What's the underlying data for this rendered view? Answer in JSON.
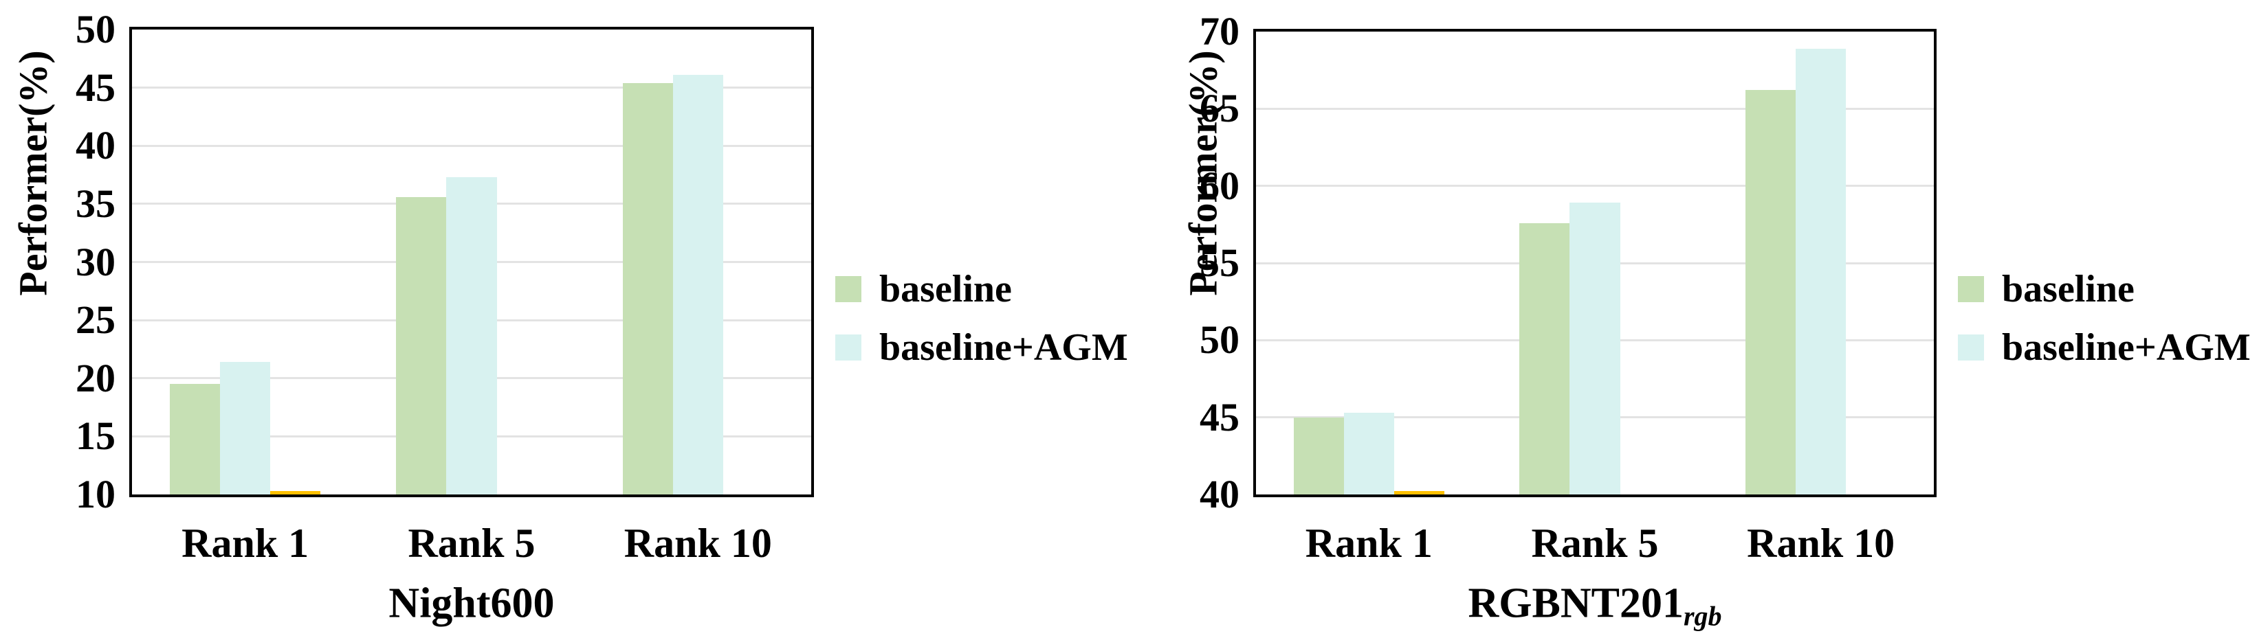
{
  "figure": {
    "background": "#ffffff",
    "axis_color": "#000000",
    "gridline_color": "#e3e3e3",
    "text_color": "#000000"
  },
  "chart_data": [
    {
      "type": "bar",
      "title_main": "Night600",
      "title_sub": "",
      "ylabel": "Performer(%)",
      "categories": [
        "Rank 1",
        "Rank 5",
        "Rank 10"
      ],
      "series": [
        {
          "name": "baseline",
          "color": "#c6e0b4",
          "values": [
            19.5,
            35.6,
            45.4
          ]
        },
        {
          "name": "baseline+AGM",
          "color": "#d8f2f0",
          "values": [
            21.4,
            37.3,
            46.1
          ]
        }
      ],
      "ylim": [
        10,
        50
      ],
      "ytick_step": 5,
      "yticks": [
        "10",
        "15",
        "20",
        "25",
        "30",
        "35",
        "40",
        "45",
        "50"
      ],
      "grid": true,
      "legend_position": "right",
      "extra_marks": [
        {
          "type": "baseline-sliver",
          "category": "Rank 1",
          "slot": 2,
          "color": "#ffc000",
          "note": "thin gold bar sliver at axis baseline in empty third series slot"
        }
      ]
    },
    {
      "type": "bar",
      "title_main": "RGBNT201",
      "title_sub": "rgb",
      "ylabel": "Performer(%)",
      "categories": [
        "Rank 1",
        "Rank 5",
        "Rank 10"
      ],
      "series": [
        {
          "name": "baseline",
          "color": "#c6e0b4",
          "values": [
            45.0,
            57.6,
            66.2
          ]
        },
        {
          "name": "baseline+AGM",
          "color": "#d8f2f0",
          "values": [
            45.3,
            58.9,
            68.9
          ]
        }
      ],
      "ylim": [
        40,
        70
      ],
      "ytick_step": 5,
      "yticks": [
        "40",
        "45",
        "50",
        "55",
        "60",
        "65",
        "70"
      ],
      "grid": true,
      "legend_position": "right",
      "extra_marks": [
        {
          "type": "baseline-sliver",
          "category": "Rank 1",
          "slot": 2,
          "color": "#ffc000",
          "note": "thin gold bar sliver at axis baseline in empty third series slot"
        }
      ]
    }
  ]
}
